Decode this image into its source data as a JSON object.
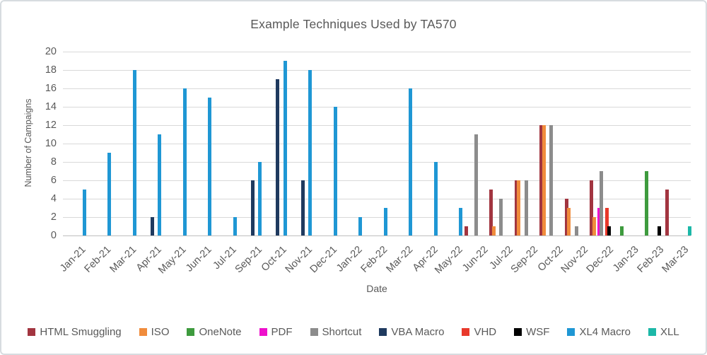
{
  "window": {
    "background": "#ffffff",
    "border_color": "#d7dce0",
    "text_color": "#595959",
    "gridline_color": "#d9d9d9",
    "axis_line_color": "#bfbfbf"
  },
  "chart_data": {
    "type": "bar",
    "title": "Example Techniques Used by TA570",
    "xlabel": "Date",
    "ylabel": "Number of Campaigns",
    "ylim": [
      0,
      20
    ],
    "y_ticks": [
      0,
      2,
      4,
      6,
      8,
      10,
      12,
      14,
      16,
      18,
      20
    ],
    "grid": true,
    "legend_position": "bottom",
    "categories": [
      "Jan-21",
      "Feb-21",
      "Mar-21",
      "Apr-21",
      "May-21",
      "Jun-21",
      "Jul-21",
      "Sep-21",
      "Oct-21",
      "Nov-21",
      "Dec-21",
      "Jan-22",
      "Feb-22",
      "Mar-22",
      "Apr-22",
      "May-22",
      "Jun-22",
      "Jul-22",
      "Sep-22",
      "Oct-22",
      "Nov-22",
      "Dec-22",
      "Jan-23",
      "Feb-23",
      "Mar-23"
    ],
    "series": [
      {
        "name": "HTML Smuggling",
        "color": "#A23540",
        "values": [
          0,
          0,
          0,
          0,
          0,
          0,
          0,
          0,
          0,
          0,
          0,
          0,
          0,
          0,
          0,
          0,
          1,
          5,
          6,
          12,
          4,
          6,
          0,
          0,
          5
        ]
      },
      {
        "name": "ISO",
        "color": "#F08C3C",
        "values": [
          0,
          0,
          0,
          0,
          0,
          0,
          0,
          0,
          0,
          0,
          0,
          0,
          0,
          0,
          0,
          0,
          0,
          1,
          6,
          12,
          3,
          2,
          0,
          0,
          0
        ]
      },
      {
        "name": "OneNote",
        "color": "#3E9B3E",
        "values": [
          0,
          0,
          0,
          0,
          0,
          0,
          0,
          0,
          0,
          0,
          0,
          0,
          0,
          0,
          0,
          0,
          0,
          0,
          0,
          0,
          0,
          0,
          1,
          7,
          0
        ]
      },
      {
        "name": "PDF",
        "color": "#EE11CC",
        "values": [
          0,
          0,
          0,
          0,
          0,
          0,
          0,
          0,
          0,
          0,
          0,
          0,
          0,
          0,
          0,
          0,
          0,
          0,
          0,
          0,
          0,
          3,
          0,
          0,
          0
        ]
      },
      {
        "name": "Shortcut",
        "color": "#8C8C8C",
        "values": [
          0,
          0,
          0,
          0,
          0,
          0,
          0,
          0,
          0,
          0,
          0,
          0,
          0,
          0,
          0,
          0,
          11,
          4,
          6,
          12,
          1,
          7,
          0,
          0,
          0
        ]
      },
      {
        "name": "VBA Macro",
        "color": "#1F3A5F",
        "values": [
          0,
          0,
          0,
          2,
          0,
          0,
          0,
          6,
          17,
          6,
          0,
          0,
          0,
          0,
          0,
          0,
          0,
          0,
          0,
          0,
          0,
          0,
          0,
          0,
          0
        ]
      },
      {
        "name": "VHD",
        "color": "#E8392B",
        "values": [
          0,
          0,
          0,
          0,
          0,
          0,
          0,
          0,
          0,
          0,
          0,
          0,
          0,
          0,
          0,
          0,
          0,
          0,
          0,
          0,
          0,
          3,
          0,
          0,
          0
        ]
      },
      {
        "name": "WSF",
        "color": "#000000",
        "values": [
          0,
          0,
          0,
          0,
          0,
          0,
          0,
          0,
          0,
          0,
          0,
          0,
          0,
          0,
          0,
          0,
          0,
          0,
          0,
          0,
          0,
          1,
          0,
          1,
          0
        ]
      },
      {
        "name": "XL4 Macro",
        "color": "#1F97D4",
        "values": [
          5,
          9,
          18,
          11,
          16,
          15,
          2,
          8,
          19,
          18,
          14,
          2,
          3,
          16,
          8,
          3,
          0,
          0,
          0,
          0,
          0,
          0,
          0,
          0,
          0
        ]
      },
      {
        "name": "XLL",
        "color": "#1CB8A8",
        "values": [
          0,
          0,
          0,
          0,
          0,
          0,
          0,
          0,
          0,
          0,
          0,
          0,
          0,
          0,
          0,
          0,
          0,
          0,
          0,
          0,
          0,
          0,
          0,
          0,
          1
        ]
      }
    ]
  }
}
